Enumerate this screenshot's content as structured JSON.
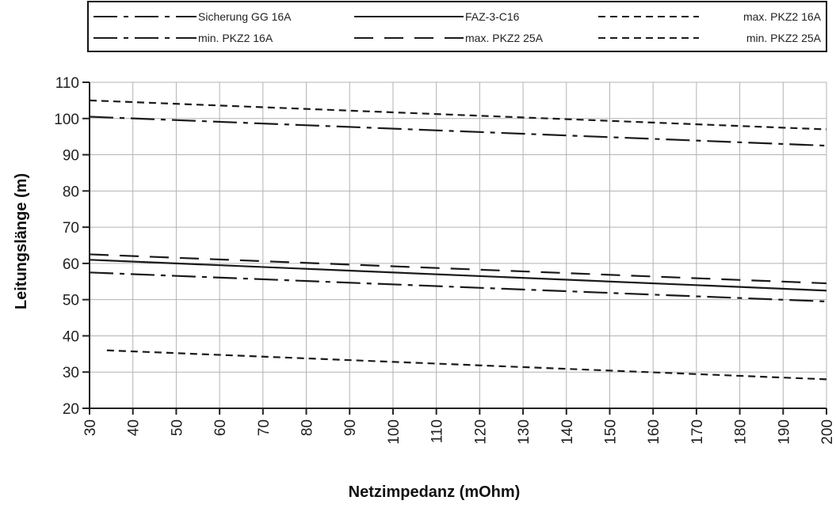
{
  "chart_data": {
    "type": "line",
    "xlabel": "Netzimpedanz (mOhm)",
    "ylabel": "Leitungslänge (m)",
    "xlim": [
      30,
      200
    ],
    "ylim": [
      20,
      110
    ],
    "x_ticks": [
      "30",
      "40",
      "50",
      "60",
      "70",
      "80",
      "90",
      "100",
      "110",
      "120",
      "130",
      "140",
      "150",
      "160",
      "170",
      "180",
      "190",
      "200"
    ],
    "y_ticks": [
      "20",
      "30",
      "40",
      "50",
      "60",
      "70",
      "80",
      "90",
      "100",
      "110"
    ],
    "grid": true,
    "legend_position": "top",
    "series": [
      {
        "name": "Sicherung GG 16A",
        "dash": "longdashdot",
        "points": [
          [
            30,
            57.5
          ],
          [
            200,
            49.5
          ]
        ]
      },
      {
        "name": "FAZ-3-C16",
        "dash": "solid",
        "points": [
          [
            30,
            61
          ],
          [
            200,
            52.5
          ]
        ]
      },
      {
        "name": "max. PKZ2 16A",
        "dash": "shortdash",
        "points": [
          [
            30,
            105
          ],
          [
            200,
            97
          ]
        ]
      },
      {
        "name": "min. PKZ2 16A",
        "dash": "longdashdot",
        "points": [
          [
            30,
            100.5
          ],
          [
            200,
            92.5
          ]
        ]
      },
      {
        "name": "max. PKZ2 25A",
        "dash": "longdash",
        "points": [
          [
            30,
            62.5
          ],
          [
            200,
            54.5
          ]
        ]
      },
      {
        "name": "min. PKZ2 25A",
        "dash": "shortdash",
        "points": [
          [
            34,
            36
          ],
          [
            200,
            28
          ]
        ]
      }
    ]
  }
}
